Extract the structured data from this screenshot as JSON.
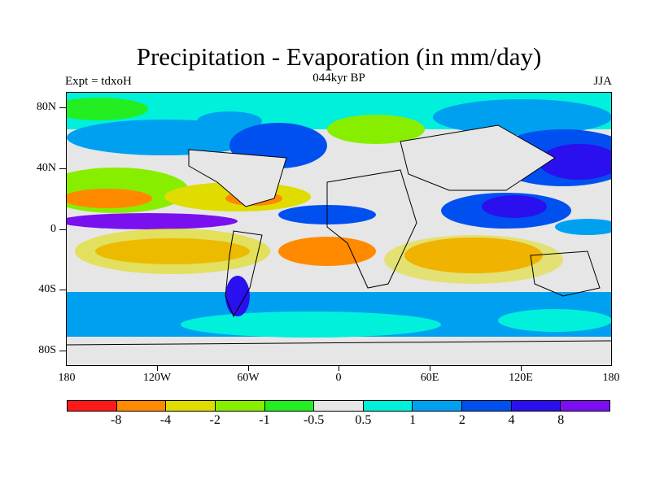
{
  "title": "Precipitation - Evaporation (in mm/day)",
  "subtitle_left": "Expt = tdxoH",
  "subtitle_center": "044kyr BP",
  "subtitle_right": "JJA",
  "lat_labels": [
    "80N",
    "40N",
    "0",
    "40S",
    "80S"
  ],
  "lon_labels": [
    "180",
    "120W",
    "60W",
    "0",
    "60E",
    "120E",
    "180"
  ],
  "colorbar": {
    "colors": [
      "#ff1a1a",
      "#ff8a00",
      "#e0dc00",
      "#88ee00",
      "#22ee22",
      "#e6e6e6",
      "#00f0dc",
      "#00a0f0",
      "#0050f0",
      "#2a10ee",
      "#7a10f0"
    ],
    "labels": [
      "-8",
      "-4",
      "-2",
      "-1",
      "-0.5",
      "0.5",
      "1",
      "2",
      "4",
      "8"
    ]
  }
}
